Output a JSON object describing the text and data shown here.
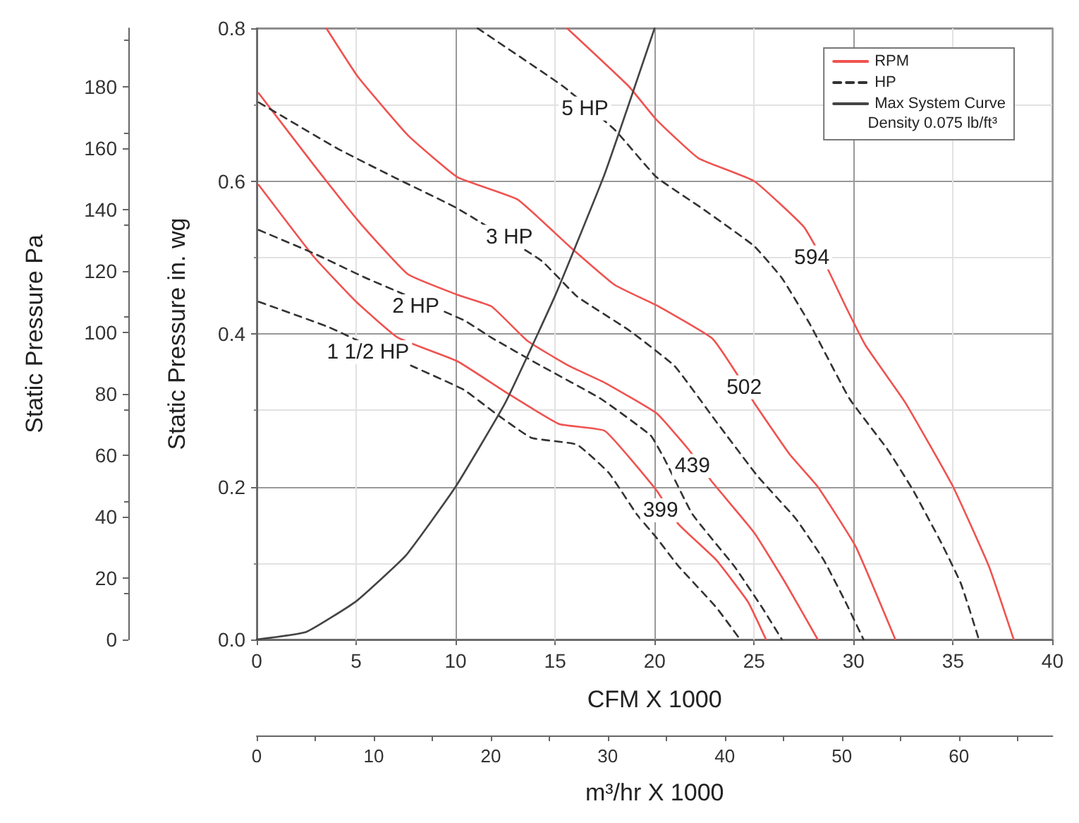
{
  "chart_data": {
    "type": "line",
    "xlabel": "CFM X 1000",
    "ylabel": "Static Pressure in. wg",
    "y2label": "Static Pressure Pa",
    "x2label": "m³/hr X 1000",
    "xlim": [
      0,
      40
    ],
    "xticks": [
      0,
      5,
      10,
      15,
      20,
      25,
      30,
      35,
      40
    ],
    "ylim": [
      0,
      0.8
    ],
    "yticks": [
      {
        "value": 0,
        "label": "0.0"
      },
      0.2,
      0.4,
      0.6,
      0.8
    ],
    "y2lim": [
      0,
      199
    ],
    "y2ticks": [
      0,
      20,
      40,
      60,
      80,
      100,
      120,
      140,
      160,
      180
    ],
    "x2lim": [
      0,
      68
    ],
    "x2ticks": [
      0,
      10,
      20,
      30,
      40,
      50,
      60
    ],
    "grid": true,
    "legend": "top right",
    "marker": "none",
    "series": [
      {
        "name": "RPM",
        "color": "#ef5350",
        "line_style": "solid",
        "x": [
          0.1,
          2.9,
          5.0,
          7.1,
          10.1,
          12.5,
          15.2,
          17.5,
          20.1,
          21.2,
          23.1,
          24.7,
          25.6
        ],
        "values": [
          0.595,
          0.5,
          0.442,
          0.395,
          0.364,
          0.324,
          0.282,
          0.273,
          0.195,
          0.151,
          0.104,
          0.049,
          0
        ]
      },
      {
        "color": "#ef5350",
        "line_style": "solid",
        "x": [
          0.1,
          2.9,
          5.2,
          7.6,
          10.1,
          11.8,
          13.6,
          15.7,
          17.5,
          20.1,
          21.7,
          22.9,
          25.0,
          26.6,
          28.2
        ],
        "values": [
          0.715,
          0.62,
          0.545,
          0.478,
          0.451,
          0.436,
          0.391,
          0.358,
          0.336,
          0.296,
          0.249,
          0.206,
          0.14,
          0.073,
          0
        ]
      },
      {
        "color": "#ef5350",
        "line_style": "solid",
        "x": [
          3.5,
          5.1,
          7.6,
          10.1,
          13.1,
          15.7,
          18.0,
          20.2,
          22.9,
          24.1,
          25.0,
          26.8,
          28.2,
          30.1,
          32.1
        ],
        "values": [
          0.8,
          0.736,
          0.66,
          0.605,
          0.576,
          0.515,
          0.464,
          0.436,
          0.394,
          0.349,
          0.31,
          0.242,
          0.2,
          0.122,
          0
        ]
      },
      {
        "color": "#ef5350",
        "line_style": "solid",
        "x": [
          15.6,
          18.7,
          20.1,
          22.2,
          25.0,
          27.5,
          28.7,
          29.6,
          30.6,
          32.6,
          35.0,
          36.8,
          38.05
        ],
        "values": [
          0.8,
          0.724,
          0.68,
          0.63,
          0.6,
          0.54,
          0.485,
          0.436,
          0.385,
          0.31,
          0.2,
          0.096,
          0
        ]
      },
      {
        "name": "HP",
        "color": "#333333",
        "line_style": "dashed",
        "x": [
          0.1,
          3.6,
          7.8,
          10.4,
          12.0,
          13.8,
          16.1,
          17.7,
          19.1,
          20.1,
          21.2,
          23.1,
          24.3
        ],
        "values": [
          0.442,
          0.409,
          0.358,
          0.327,
          0.296,
          0.264,
          0.255,
          0.218,
          0.164,
          0.133,
          0.096,
          0.042,
          0
        ]
      },
      {
        "color": "#333333",
        "line_style": "dashed",
        "x": [
          0.1,
          2.9,
          5.5,
          10.4,
          11.8,
          14.3,
          17.3,
          19.8,
          20.5,
          21.9,
          24.0,
          25.4,
          26.4
        ],
        "values": [
          0.536,
          0.505,
          0.473,
          0.418,
          0.395,
          0.358,
          0.315,
          0.267,
          0.236,
          0.164,
          0.096,
          0.042,
          0
        ]
      },
      {
        "color": "#333333",
        "line_style": "dashed",
        "x": [
          0.1,
          4.1,
          6.9,
          10.1,
          14.3,
          16.1,
          18.7,
          21.0,
          23.1,
          25.2,
          27.1,
          28.5,
          29.6,
          30.5
        ],
        "values": [
          0.703,
          0.642,
          0.605,
          0.564,
          0.496,
          0.449,
          0.405,
          0.358,
          0.285,
          0.213,
          0.158,
          0.104,
          0.049,
          0
        ]
      },
      {
        "color": "#333333",
        "line_style": "dashed",
        "x": [
          11.1,
          15.4,
          18.0,
          20.1,
          22.4,
          25.0,
          26.4,
          27.8,
          29.8,
          31.7,
          33.0,
          34.4,
          35.4,
          36.3
        ],
        "values": [
          0.8,
          0.724,
          0.667,
          0.605,
          0.564,
          0.515,
          0.473,
          0.413,
          0.315,
          0.249,
          0.195,
          0.127,
          0.073,
          0
        ]
      },
      {
        "name": "Max System Curve",
        "color": "#444444",
        "line_style": "solid",
        "x": [
          0,
          2.5,
          5,
          7.5,
          10,
          12.5,
          15,
          17.5,
          20
        ],
        "values": [
          0,
          0.01,
          0.05,
          0.11,
          0.2,
          0.31,
          0.45,
          0.61,
          0.8
        ]
      }
    ],
    "annotations": [
      {
        "text": "399",
        "x": 20.3,
        "y": 0.169
      },
      {
        "text": "439",
        "x": 21.9,
        "y": 0.227
      },
      {
        "text": "502",
        "x": 24.5,
        "y": 0.33
      },
      {
        "text": "594",
        "x": 27.9,
        "y": 0.5
      },
      {
        "text": "1 1/2 HP",
        "x": 5.6,
        "y": 0.376
      },
      {
        "text": "2 HP",
        "x": 8.0,
        "y": 0.436
      },
      {
        "text": "3 HP",
        "x": 12.7,
        "y": 0.527
      },
      {
        "text": "5 HP",
        "x": 16.5,
        "y": 0.695
      },
      "Density 0.075 lb/ft³"
    ]
  }
}
